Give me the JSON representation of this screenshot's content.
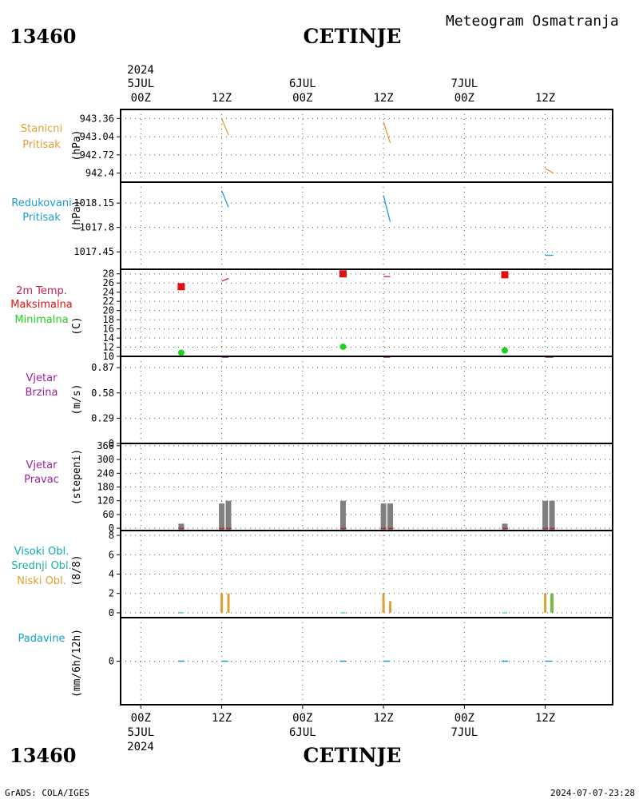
{
  "header": {
    "station_id": "13460",
    "station_name": "CETINJE",
    "meteogram_title": "Meteogram Osmatranja"
  },
  "footer": {
    "left": "GrADS: COLA/IGES",
    "right": "2024-07-07-23:28"
  },
  "time_axis": {
    "year": "2024",
    "ticks": [
      {
        "hour": 0,
        "label": "00Z",
        "date": "5JUL"
      },
      {
        "hour": 12,
        "label": "12Z",
        "date": ""
      },
      {
        "hour": 24,
        "label": "00Z",
        "date": "6JUL"
      },
      {
        "hour": 36,
        "label": "12Z",
        "date": ""
      },
      {
        "hour": 48,
        "label": "00Z",
        "date": "7JUL"
      },
      {
        "hour": 60,
        "label": "12Z",
        "date": ""
      }
    ],
    "range_hours": [
      -3,
      70
    ]
  },
  "colors": {
    "station_pressure": "#e0a030",
    "reduced_pressure": "#1ea0d0",
    "temp_label": "#c0204a",
    "temp_max": "#e01010",
    "temp_min": "#20d020",
    "wind": "#a020a0",
    "cloud_high": "#10a8b8",
    "cloud_mid": "#20b0a0",
    "cloud_low": "#e0a030",
    "precip": "#10a0c8",
    "bar_gray": "#808080"
  },
  "chart_data": [
    {
      "type": "line",
      "id": "station_pressure",
      "labels": [
        "Stanicni",
        "Pritisak"
      ],
      "ylabel": "(hPa)",
      "yticks": [
        "943.36",
        "943.04",
        "942.72",
        "942.4"
      ],
      "ylim": [
        942.24,
        943.52
      ],
      "series": [
        {
          "segments": [
            [
              [
                12.0,
                943.36
              ],
              [
                13.0,
                943.07
              ]
            ],
            [
              [
                36.0,
                943.3
              ],
              [
                37.0,
                942.93
              ]
            ],
            [
              [
                60.0,
                942.48
              ],
              [
                61.2,
                942.4
              ]
            ]
          ]
        }
      ]
    },
    {
      "type": "line",
      "id": "reduced_pressure",
      "labels": [
        "Redukovani",
        "Pritisak"
      ],
      "ylabel": "(hPa)",
      "yticks": [
        "1018.15",
        "1017.8",
        "1017.45"
      ],
      "ylim": [
        1017.2,
        1018.45
      ],
      "series": [
        {
          "segments": [
            [
              [
                12.0,
                1018.33
              ],
              [
                13.0,
                1018.09
              ]
            ],
            [
              [
                36.0,
                1018.26
              ],
              [
                37.0,
                1017.88
              ]
            ],
            [
              [
                60.0,
                1017.4
              ],
              [
                61.2,
                1017.4
              ]
            ]
          ]
        }
      ]
    },
    {
      "type": "scatter",
      "id": "temperature",
      "labels": [
        "2m Temp.",
        "Maksimalna",
        "Minimalna"
      ],
      "ylabel": "(C)",
      "yticks": [
        "10",
        "12",
        "14",
        "16",
        "18",
        "20",
        "22",
        "24",
        "26",
        "28"
      ],
      "ylim": [
        10,
        29
      ],
      "series": [
        {
          "name": "2m Temp.",
          "segments": [
            [
              [
                12.0,
                26.4
              ],
              [
                13.0,
                27.0
              ]
            ],
            [
              [
                36.0,
                27.4
              ],
              [
                37.0,
                27.4
              ]
            ]
          ]
        },
        {
          "name": "Maksimalna",
          "points": [
            [
              6.0,
              25.2
            ],
            [
              30.0,
              28.0
            ],
            [
              54.0,
              27.8
            ]
          ]
        },
        {
          "name": "Minimalna",
          "points": [
            [
              6.0,
              10.8
            ],
            [
              30.0,
              12.1
            ],
            [
              54.0,
              11.3
            ]
          ]
        }
      ]
    },
    {
      "type": "line",
      "id": "wind_speed",
      "labels": [
        "Vjetar",
        "Brzina"
      ],
      "ylabel": "(m/s)",
      "yticks": [
        "0",
        "0.29",
        "0.58",
        "0.87"
      ],
      "ylim": [
        0,
        1.0
      ],
      "series": [
        {
          "segments": [
            [
              [
                12.0,
                0.99
              ],
              [
                13.0,
                0.99
              ]
            ],
            [
              [
                36.0,
                0.99
              ],
              [
                37.0,
                0.99
              ]
            ],
            [
              [
                60.0,
                0.99
              ],
              [
                61.2,
                0.99
              ]
            ]
          ]
        }
      ]
    },
    {
      "type": "bar",
      "id": "wind_direction",
      "labels": [
        "Vjetar",
        "Pravac"
      ],
      "ylabel": "(stepeni)",
      "yticks": [
        "0",
        "60",
        "120",
        "180",
        "240",
        "300",
        "360"
      ],
      "ylim": [
        -10,
        370
      ],
      "bars": [
        {
          "x": 6.0,
          "value": 20
        },
        {
          "x": 12.0,
          "value": 108
        },
        {
          "x": 13.0,
          "value": 120
        },
        {
          "x": 30.0,
          "value": 120
        },
        {
          "x": 36.0,
          "value": 108
        },
        {
          "x": 37.0,
          "value": 108
        },
        {
          "x": 54.0,
          "value": 20
        },
        {
          "x": 60.0,
          "value": 120
        },
        {
          "x": 61.0,
          "value": 120
        }
      ]
    },
    {
      "type": "bar",
      "id": "cloud_cover",
      "labels": [
        "Visoki Obl.",
        "Srednji Obl.",
        "Niski Obl."
      ],
      "ylabel": "(8/8)",
      "yticks": [
        "0",
        "2",
        "4",
        "6",
        "8"
      ],
      "ylim": [
        -0.5,
        8.5
      ],
      "series": [
        {
          "name": "Niski Obl.",
          "bars": [
            {
              "x": 12.0,
              "value": 2.0
            },
            {
              "x": 13.0,
              "value": 2.0
            },
            {
              "x": 36.0,
              "value": 2.0
            },
            {
              "x": 37.0,
              "value": 1.2
            },
            {
              "x": 60.0,
              "value": 2.0
            }
          ]
        },
        {
          "name": "Srednji Obl.",
          "bars": [
            {
              "x": 61.0,
              "value": 2.0
            }
          ]
        }
      ]
    },
    {
      "type": "bar",
      "id": "precipitation",
      "labels": [
        "Padavine"
      ],
      "ylabel": "(mm/6h/12h)",
      "yticks": [
        "0"
      ],
      "ylim": [
        -4,
        4
      ],
      "series": [
        {
          "name": "Padavine",
          "bars": [
            {
              "x": 6.0,
              "value": 0
            },
            {
              "x": 12.5,
              "value": 0
            },
            {
              "x": 30.0,
              "value": 0
            },
            {
              "x": 36.5,
              "value": 0
            },
            {
              "x": 54.0,
              "value": 0
            },
            {
              "x": 60.5,
              "value": 0
            }
          ]
        }
      ]
    }
  ]
}
